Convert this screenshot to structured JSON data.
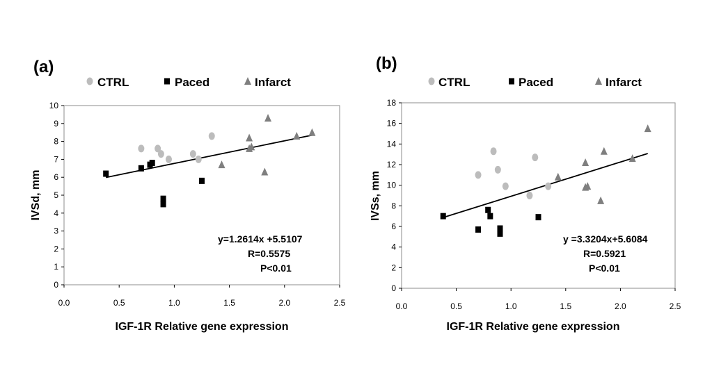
{
  "chart_data": [
    {
      "type": "scatter",
      "panel_label": "(a)",
      "xlabel": "IGF-1R Relative gene expression",
      "ylabel": "IVSd, mm",
      "xlim": [
        0,
        2.5
      ],
      "ylim": [
        0,
        10
      ],
      "x_ticks": [
        "0.0",
        "0.5",
        "1.0",
        "1.5",
        "2.0",
        "2.5"
      ],
      "y_ticks": [
        "0",
        "1",
        "2",
        "3",
        "4",
        "5",
        "6",
        "7",
        "8",
        "9",
        "10"
      ],
      "x_tick_values": [
        0,
        0.5,
        1.0,
        1.5,
        2.0,
        2.5
      ],
      "y_tick_values": [
        0,
        1,
        2,
        3,
        4,
        5,
        6,
        7,
        8,
        9,
        10
      ],
      "grid": false,
      "legend_position": "top",
      "series": [
        {
          "name": "CTRL",
          "marker": "circle",
          "color": "#bcbcbc",
          "points": [
            [
              0.7,
              7.6
            ],
            [
              0.85,
              7.6
            ],
            [
              0.88,
              7.3
            ],
            [
              0.95,
              7.0
            ],
            [
              1.17,
              7.3
            ],
            [
              1.22,
              7.0
            ],
            [
              1.34,
              8.3
            ]
          ]
        },
        {
          "name": "Paced",
          "marker": "square",
          "color": "#000000",
          "points": [
            [
              0.38,
              6.2
            ],
            [
              0.7,
              6.5
            ],
            [
              0.78,
              6.7
            ],
            [
              0.8,
              6.8
            ],
            [
              0.9,
              4.8
            ],
            [
              0.9,
              4.5
            ],
            [
              1.25,
              5.8
            ]
          ]
        },
        {
          "name": "Infarct",
          "marker": "triangle",
          "color": "#7f7f7f",
          "points": [
            [
              1.43,
              6.7
            ],
            [
              1.68,
              8.2
            ],
            [
              1.68,
              7.6
            ],
            [
              1.7,
              7.7
            ],
            [
              1.82,
              6.3
            ],
            [
              1.85,
              9.3
            ],
            [
              2.11,
              8.3
            ],
            [
              2.25,
              8.5
            ]
          ]
        }
      ],
      "trendline": {
        "x": [
          0.38,
          2.25
        ],
        "slope": 1.2614,
        "intercept": 5.5107
      },
      "annotations": [
        "y=1.2614x +5.5107",
        "R=0.5575",
        "P<0.01"
      ]
    },
    {
      "type": "scatter",
      "panel_label": "(b)",
      "xlabel": "IGF-1R Relative gene expression",
      "ylabel": "IVSs, mm",
      "xlim": [
        0,
        2.5
      ],
      "ylim": [
        0,
        18
      ],
      "x_ticks": [
        "0.0",
        "0.5",
        "1.0",
        "1.5",
        "2.0",
        "2.5"
      ],
      "y_ticks": [
        "0",
        "2",
        "4",
        "6",
        "8",
        "10",
        "12",
        "14",
        "16",
        "18"
      ],
      "x_tick_values": [
        0,
        0.5,
        1.0,
        1.5,
        2.0,
        2.5
      ],
      "y_tick_values": [
        0,
        2,
        4,
        6,
        8,
        10,
        12,
        14,
        16,
        18
      ],
      "grid": false,
      "legend_position": "top",
      "series": [
        {
          "name": "CTRL",
          "marker": "circle",
          "color": "#bcbcbc",
          "points": [
            [
              0.7,
              11.0
            ],
            [
              0.84,
              13.3
            ],
            [
              0.88,
              11.5
            ],
            [
              0.95,
              9.9
            ],
            [
              1.17,
              9.0
            ],
            [
              1.22,
              12.7
            ],
            [
              1.34,
              9.9
            ]
          ]
        },
        {
          "name": "Paced",
          "marker": "square",
          "color": "#000000",
          "points": [
            [
              0.38,
              7.0
            ],
            [
              0.7,
              5.7
            ],
            [
              0.79,
              7.6
            ],
            [
              0.81,
              7.0
            ],
            [
              0.9,
              5.8
            ],
            [
              0.9,
              5.3
            ],
            [
              1.25,
              6.9
            ]
          ]
        },
        {
          "name": "Infarct",
          "marker": "triangle",
          "color": "#7f7f7f",
          "points": [
            [
              1.43,
              10.8
            ],
            [
              1.68,
              12.2
            ],
            [
              1.68,
              9.8
            ],
            [
              1.7,
              9.9
            ],
            [
              1.82,
              8.5
            ],
            [
              1.85,
              13.3
            ],
            [
              2.11,
              12.6
            ],
            [
              2.25,
              15.5
            ]
          ]
        }
      ],
      "trendline": {
        "x": [
          0.38,
          2.25
        ],
        "slope": 3.3204,
        "intercept": 5.6084
      },
      "annotations": [
        "y =3.3204x+5.6084",
        "R=0.5921",
        "P<0.01"
      ]
    }
  ]
}
